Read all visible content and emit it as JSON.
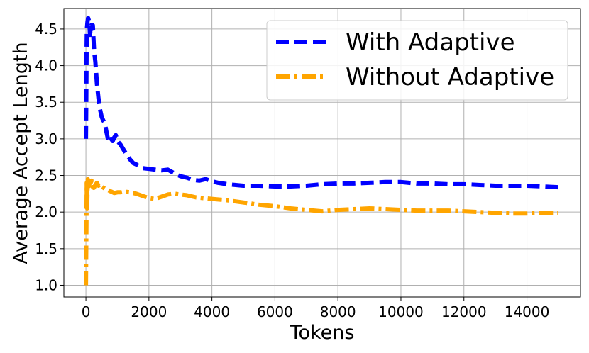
{
  "chart_data": {
    "type": "line",
    "title": "",
    "xlabel": "Tokens",
    "ylabel": "Average Accept Length",
    "xlim": [
      -700,
      15700
    ],
    "ylim": [
      0.84,
      4.78
    ],
    "grid": true,
    "legend_position": "top-right",
    "xticks": [
      0,
      2000,
      4000,
      6000,
      8000,
      10000,
      12000,
      14000
    ],
    "xtick_labels": [
      "0",
      "2000",
      "4000",
      "6000",
      "8000",
      "10000",
      "12000",
      "14000"
    ],
    "yticks": [
      1.0,
      1.5,
      2.0,
      2.5,
      3.0,
      3.5,
      4.0,
      4.5
    ],
    "ytick_labels": [
      "1.0",
      "1.5",
      "2.0",
      "2.5",
      "3.0",
      "3.5",
      "4.0",
      "4.5"
    ],
    "series": [
      {
        "name": "With Adaptive",
        "color": "#0000ff",
        "style": "dashed",
        "x": [
          0,
          10,
          20,
          30,
          50,
          70,
          90,
          110,
          130,
          160,
          190,
          220,
          260,
          300,
          350,
          400,
          450,
          500,
          550,
          600,
          650,
          700,
          750,
          800,
          850,
          900,
          950,
          1000,
          1100,
          1200,
          1300,
          1400,
          1500,
          1600,
          1700,
          1800,
          2000,
          2200,
          2400,
          2600,
          2800,
          3000,
          3200,
          3400,
          3600,
          3800,
          4000,
          4200,
          4500,
          5000,
          5500,
          6000,
          6500,
          7000,
          7500,
          8000,
          8500,
          9000,
          9500,
          10000,
          10500,
          11000,
          11500,
          12000,
          12500,
          13000,
          13500,
          14000,
          14500,
          15000
        ],
        "y": [
          3.0,
          3.45,
          4.2,
          4.5,
          4.6,
          4.65,
          4.62,
          4.57,
          4.42,
          4.55,
          4.5,
          4.55,
          4.2,
          4.05,
          3.75,
          3.55,
          3.4,
          3.3,
          3.25,
          3.22,
          3.1,
          3.0,
          2.95,
          3.0,
          2.97,
          3.02,
          3.05,
          2.97,
          2.92,
          2.85,
          2.78,
          2.72,
          2.67,
          2.65,
          2.62,
          2.6,
          2.59,
          2.58,
          2.57,
          2.58,
          2.53,
          2.49,
          2.47,
          2.44,
          2.43,
          2.45,
          2.42,
          2.4,
          2.38,
          2.36,
          2.36,
          2.35,
          2.35,
          2.36,
          2.38,
          2.39,
          2.39,
          2.4,
          2.41,
          2.41,
          2.39,
          2.39,
          2.38,
          2.38,
          2.37,
          2.36,
          2.36,
          2.36,
          2.35,
          2.34
        ]
      },
      {
        "name": "Without Adaptive",
        "color": "#ffa500",
        "style": "dashdot",
        "x": [
          0,
          10,
          20,
          25,
          30,
          40,
          50,
          60,
          70,
          80,
          100,
          120,
          150,
          180,
          200,
          250,
          300,
          350,
          400,
          450,
          500,
          600,
          700,
          800,
          900,
          1000,
          1100,
          1200,
          1400,
          1600,
          1800,
          2000,
          2200,
          2400,
          2600,
          2800,
          3000,
          3200,
          3500,
          4000,
          4500,
          5000,
          5500,
          6000,
          6500,
          7000,
          7500,
          8000,
          8500,
          9000,
          9500,
          10000,
          10500,
          11000,
          11500,
          12000,
          12500,
          13000,
          13500,
          14000,
          14500,
          15000
        ],
        "y": [
          1.0,
          1.5,
          2.1,
          2.4,
          2.1,
          2.05,
          2.3,
          2.45,
          2.4,
          2.35,
          2.38,
          2.42,
          2.4,
          2.43,
          2.35,
          2.33,
          2.37,
          2.4,
          2.36,
          2.38,
          2.35,
          2.32,
          2.3,
          2.28,
          2.26,
          2.27,
          2.27,
          2.28,
          2.27,
          2.25,
          2.22,
          2.19,
          2.18,
          2.21,
          2.24,
          2.25,
          2.24,
          2.23,
          2.2,
          2.18,
          2.16,
          2.13,
          2.1,
          2.08,
          2.05,
          2.03,
          2.01,
          2.03,
          2.04,
          2.05,
          2.04,
          2.03,
          2.02,
          2.02,
          2.02,
          2.01,
          2.0,
          1.99,
          1.98,
          1.98,
          1.99,
          1.99
        ]
      }
    ]
  }
}
